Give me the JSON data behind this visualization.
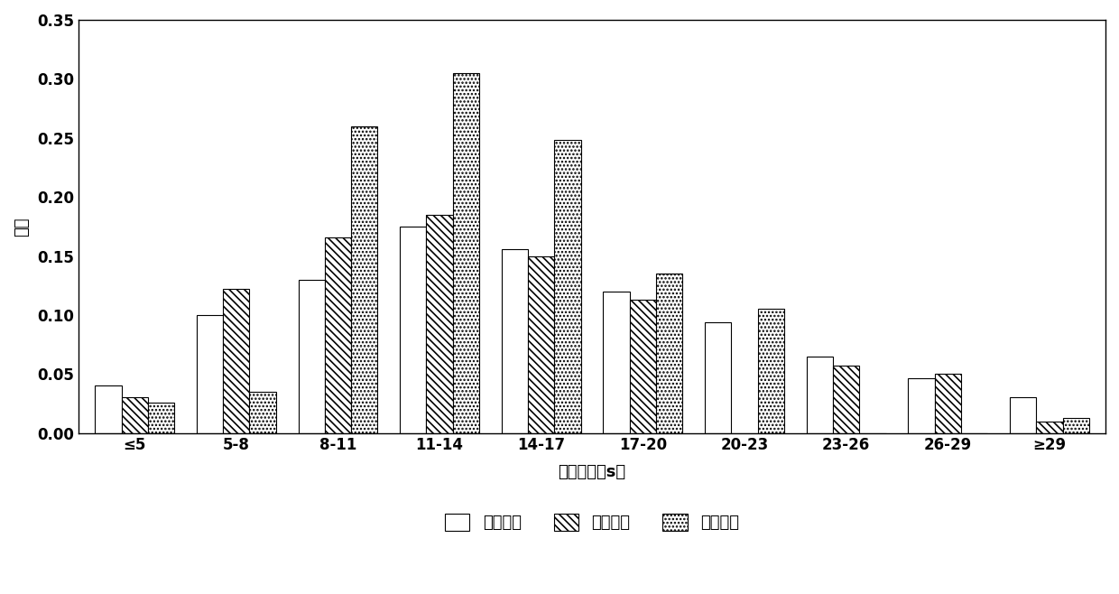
{
  "categories": [
    "≤5",
    "5-8",
    "8-11",
    "11-14",
    "14-17",
    "17-20",
    "20-23",
    "23-26",
    "26-29",
    "≥29"
  ],
  "cash_vals": [
    0.04,
    0.1,
    0.13,
    0.175,
    0.156,
    0.12,
    0.094,
    0.065,
    0.046,
    0.03
  ],
  "mobile_vals": [
    0.03,
    0.122,
    0.166,
    0.185,
    0.15,
    0.113,
    0.0,
    0.057,
    0.05,
    0.01
  ],
  "card_vals": [
    0.026,
    0.035,
    0.26,
    0.305,
    0.248,
    0.135,
    0.105,
    0.0,
    0.0,
    0.013
  ],
  "ylabel": "频率",
  "xlabel": "服务时间（s）",
  "legend": [
    "现金支付",
    "移动支付",
    "刷卡支付"
  ],
  "ylim": [
    0,
    0.35
  ],
  "yticks": [
    0.0,
    0.05,
    0.1,
    0.15,
    0.2,
    0.25,
    0.3,
    0.35
  ],
  "background": "#ffffff",
  "bar_width": 0.26,
  "hatch_cash": "|||",
  "hatch_mobile": "\\\\\\\\",
  "hatch_card": "...."
}
